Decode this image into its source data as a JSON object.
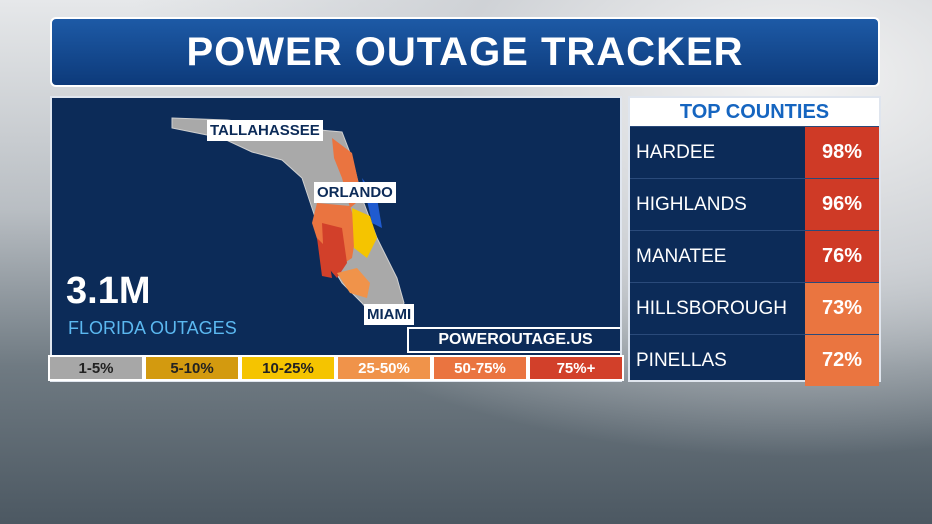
{
  "header": {
    "title": "POWER OUTAGE TRACKER"
  },
  "map": {
    "cities": [
      "TALLAHASSEE",
      "ORLANDO",
      "MIAMI"
    ],
    "total": "3.1M",
    "total_label": "FLORIDA OUTAGES",
    "source": "POWEROUTAGE.US"
  },
  "legend": {
    "items": [
      "1-5%",
      "5-10%",
      "10-25%",
      "25-50%",
      "50-75%",
      "75%+"
    ]
  },
  "table": {
    "title": "TOP COUNTIES",
    "rows": [
      [
        "HARDEE",
        "98%"
      ],
      [
        "HIGHLANDS",
        "96%"
      ],
      [
        "MANATEE",
        "76%"
      ],
      [
        "HILLSBOROUGH",
        "73%"
      ],
      [
        "PINELLAS",
        "72%"
      ]
    ]
  }
}
